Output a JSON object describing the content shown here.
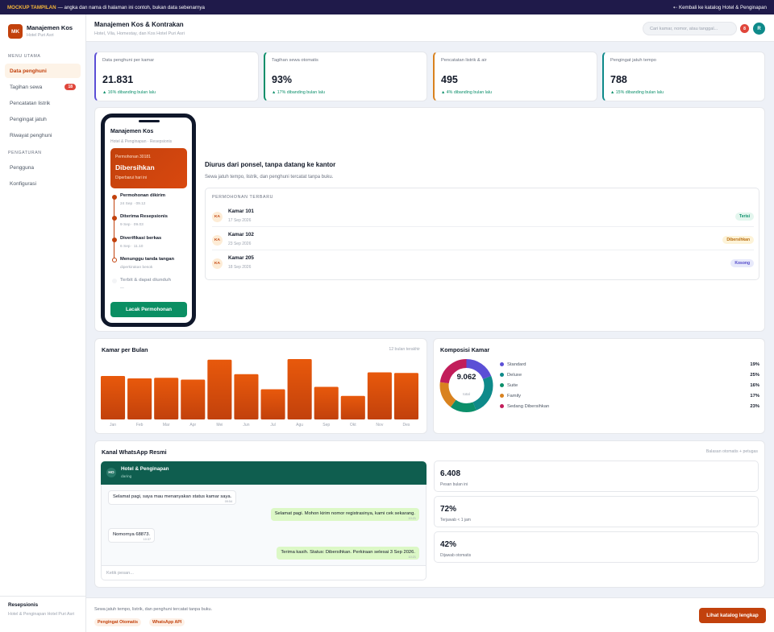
{
  "topbar": {
    "tag": "MOCKUP TAMPILAN",
    "note": " — angka dan nama di halaman ini contoh, bukan data sebenarnya",
    "back": "⇠ Kembali ke katalog Hotel & Penginapan"
  },
  "sidebar": {
    "logo": "MK",
    "title": "Manajemen Kos",
    "subtitle": "Hotel Puri Asri",
    "menu_label": "MENU UTAMA",
    "menu": [
      {
        "label": "Data penghuni"
      },
      {
        "label": "Tagihan sewa",
        "badge": "18"
      },
      {
        "label": "Pencatatan listrik"
      },
      {
        "label": "Pengingat jatuh"
      },
      {
        "label": "Riwayat penghuni"
      }
    ],
    "settings_label": "PENGATURAN",
    "settings": [
      {
        "label": "Pengguna"
      },
      {
        "label": "Konfigurasi"
      }
    ],
    "footer_role": "Resepsionis",
    "footer_place": "Hotel & Penginapan Hotel Puri Asri"
  },
  "header": {
    "title": "Manajemen Kos & Kontrakan",
    "subtitle": "Hotel, Vila, Homestay, dan Kos Hotel Puri Asri",
    "search_placeholder": "Cari kamar, nomor, atau tanggal...",
    "notif": "8",
    "avatar": "R"
  },
  "stats": [
    {
      "label": "Data penghuni per kamar",
      "value": "21.831",
      "trend": "▲ 16% dibanding bulan lalu",
      "color": "#5b4fd6"
    },
    {
      "label": "Tagihan sewa otomatis",
      "value": "93%",
      "trend": "▲ 17% dibanding bulan lalu",
      "color": "#0b8f6a"
    },
    {
      "label": "Pencatatan listrik & air",
      "value": "495",
      "trend": "▲ 4% dibanding bulan lalu",
      "color": "#d9821f"
    },
    {
      "label": "Pengingat jatuh tempo",
      "value": "788",
      "trend": "▲ 15% dibanding bulan lalu",
      "color": "#0e8a8a"
    }
  ],
  "phone": {
    "title": "Manajemen Kos",
    "subtitle": "Hotel & Penginapan · Resepsionis",
    "card_label": "Permohonan 30181",
    "card_status": "Dibersihkan",
    "card_note": "Diperbarui hari ini",
    "timeline": [
      {
        "title": "Permohonan dikirim",
        "time": "24 Sep · 09.12"
      },
      {
        "title": "Diterima Resepsionis",
        "time": "9 Sep · 09.03"
      },
      {
        "title": "Diverifikasi berkas",
        "time": "6 Sep · 11.10"
      },
      {
        "title": "Menunggu tanda tangan",
        "time": "diperkirakan besok"
      },
      {
        "title": "Terbit & dapat diunduh",
        "time": "—"
      }
    ],
    "button": "Lacak Permohonan"
  },
  "intro": {
    "title": "Diurus dari ponsel, tanpa datang ke kantor",
    "text": "Sewa jatuh tempo, listrik, dan penghuni tercatat tanpa buku."
  },
  "recent": {
    "label": "PERMOHONAN TERBARU",
    "rows": [
      {
        "avatar": "KA",
        "name": "Kamar 101",
        "date": "17 Sep 2026",
        "status": "Terisi",
        "bg": "#e3f6ee",
        "fg": "#0b8f6a"
      },
      {
        "avatar": "KA",
        "name": "Kamar 102",
        "date": "23 Sep 2026",
        "status": "Dibersihkan",
        "bg": "#fdf3d8",
        "fg": "#b86b0a"
      },
      {
        "avatar": "KA",
        "name": "Kamar 205",
        "date": "18 Sep 2026",
        "status": "Kosong",
        "bg": "#e7e9fb",
        "fg": "#4f46c8"
      }
    ]
  },
  "bar_panel": {
    "title": "Kamar per Bulan",
    "range": "12 bulan terakhir"
  },
  "chart_data": [
    {
      "type": "bar",
      "categories": [
        "Jan",
        "Feb",
        "Mar",
        "Apr",
        "Mei",
        "Jun",
        "Jul",
        "Agu",
        "Sep",
        "Okt",
        "Nov",
        "Des"
      ],
      "values": [
        72,
        68,
        69,
        66,
        99,
        75,
        50,
        100,
        54,
        39,
        78,
        77
      ],
      "color": "#e8590c",
      "grid": false
    },
    {
      "type": "pie",
      "title": "Komposisi Kamar",
      "center_value": "9.062",
      "center_label": "total",
      "categories": [
        "Standard",
        "Deluxe",
        "Suite",
        "Family",
        "Sedang Dibersihkan"
      ],
      "values": [
        19,
        25,
        16,
        17,
        23
      ],
      "labels": [
        "19%",
        "25%",
        "16%",
        "17%",
        "23%"
      ],
      "colors": [
        "#5b4fd6",
        "#0e8a8a",
        "#0b8f6a",
        "#d9821f",
        "#c21d5a"
      ]
    }
  ],
  "whatsapp": {
    "title": "Kanal WhatsApp Resmi",
    "note": "Balasan otomatis + petugas",
    "contact_avatar": "HO",
    "contact_name": "Hotel & Penginapan",
    "contact_status": "daring",
    "messages": [
      {
        "text": "Selamat pagi, saya mau menanyakan status kamar saya.",
        "time": "09:54"
      },
      {
        "text": "Selamat pagi. Mohon kirim nomor registrasinya, kami cek sekarang.",
        "time": "10:21"
      },
      {
        "text": "Nomornya 68873.",
        "time": "10:37"
      },
      {
        "text": "Terima kasih. Status: Dibersihkan. Perkiraan selesai 3 Sep 2026.",
        "time": "10:21"
      }
    ],
    "input_placeholder": "Ketik pesan...",
    "stats": [
      {
        "value": "6.408",
        "label": "Pesan bulan ini"
      },
      {
        "value": "72%",
        "label": "Terjawab < 1 jam"
      },
      {
        "value": "42%",
        "label": "Dijawab otomatis"
      }
    ]
  },
  "footer": {
    "note": "Sewa jatuh tempo, listrik, dan penghuni tercatat tanpa buku.",
    "pills": [
      "Pengingat Otomatis",
      "WhatsApp API"
    ],
    "button": "Lihat katalog lengkap"
  }
}
